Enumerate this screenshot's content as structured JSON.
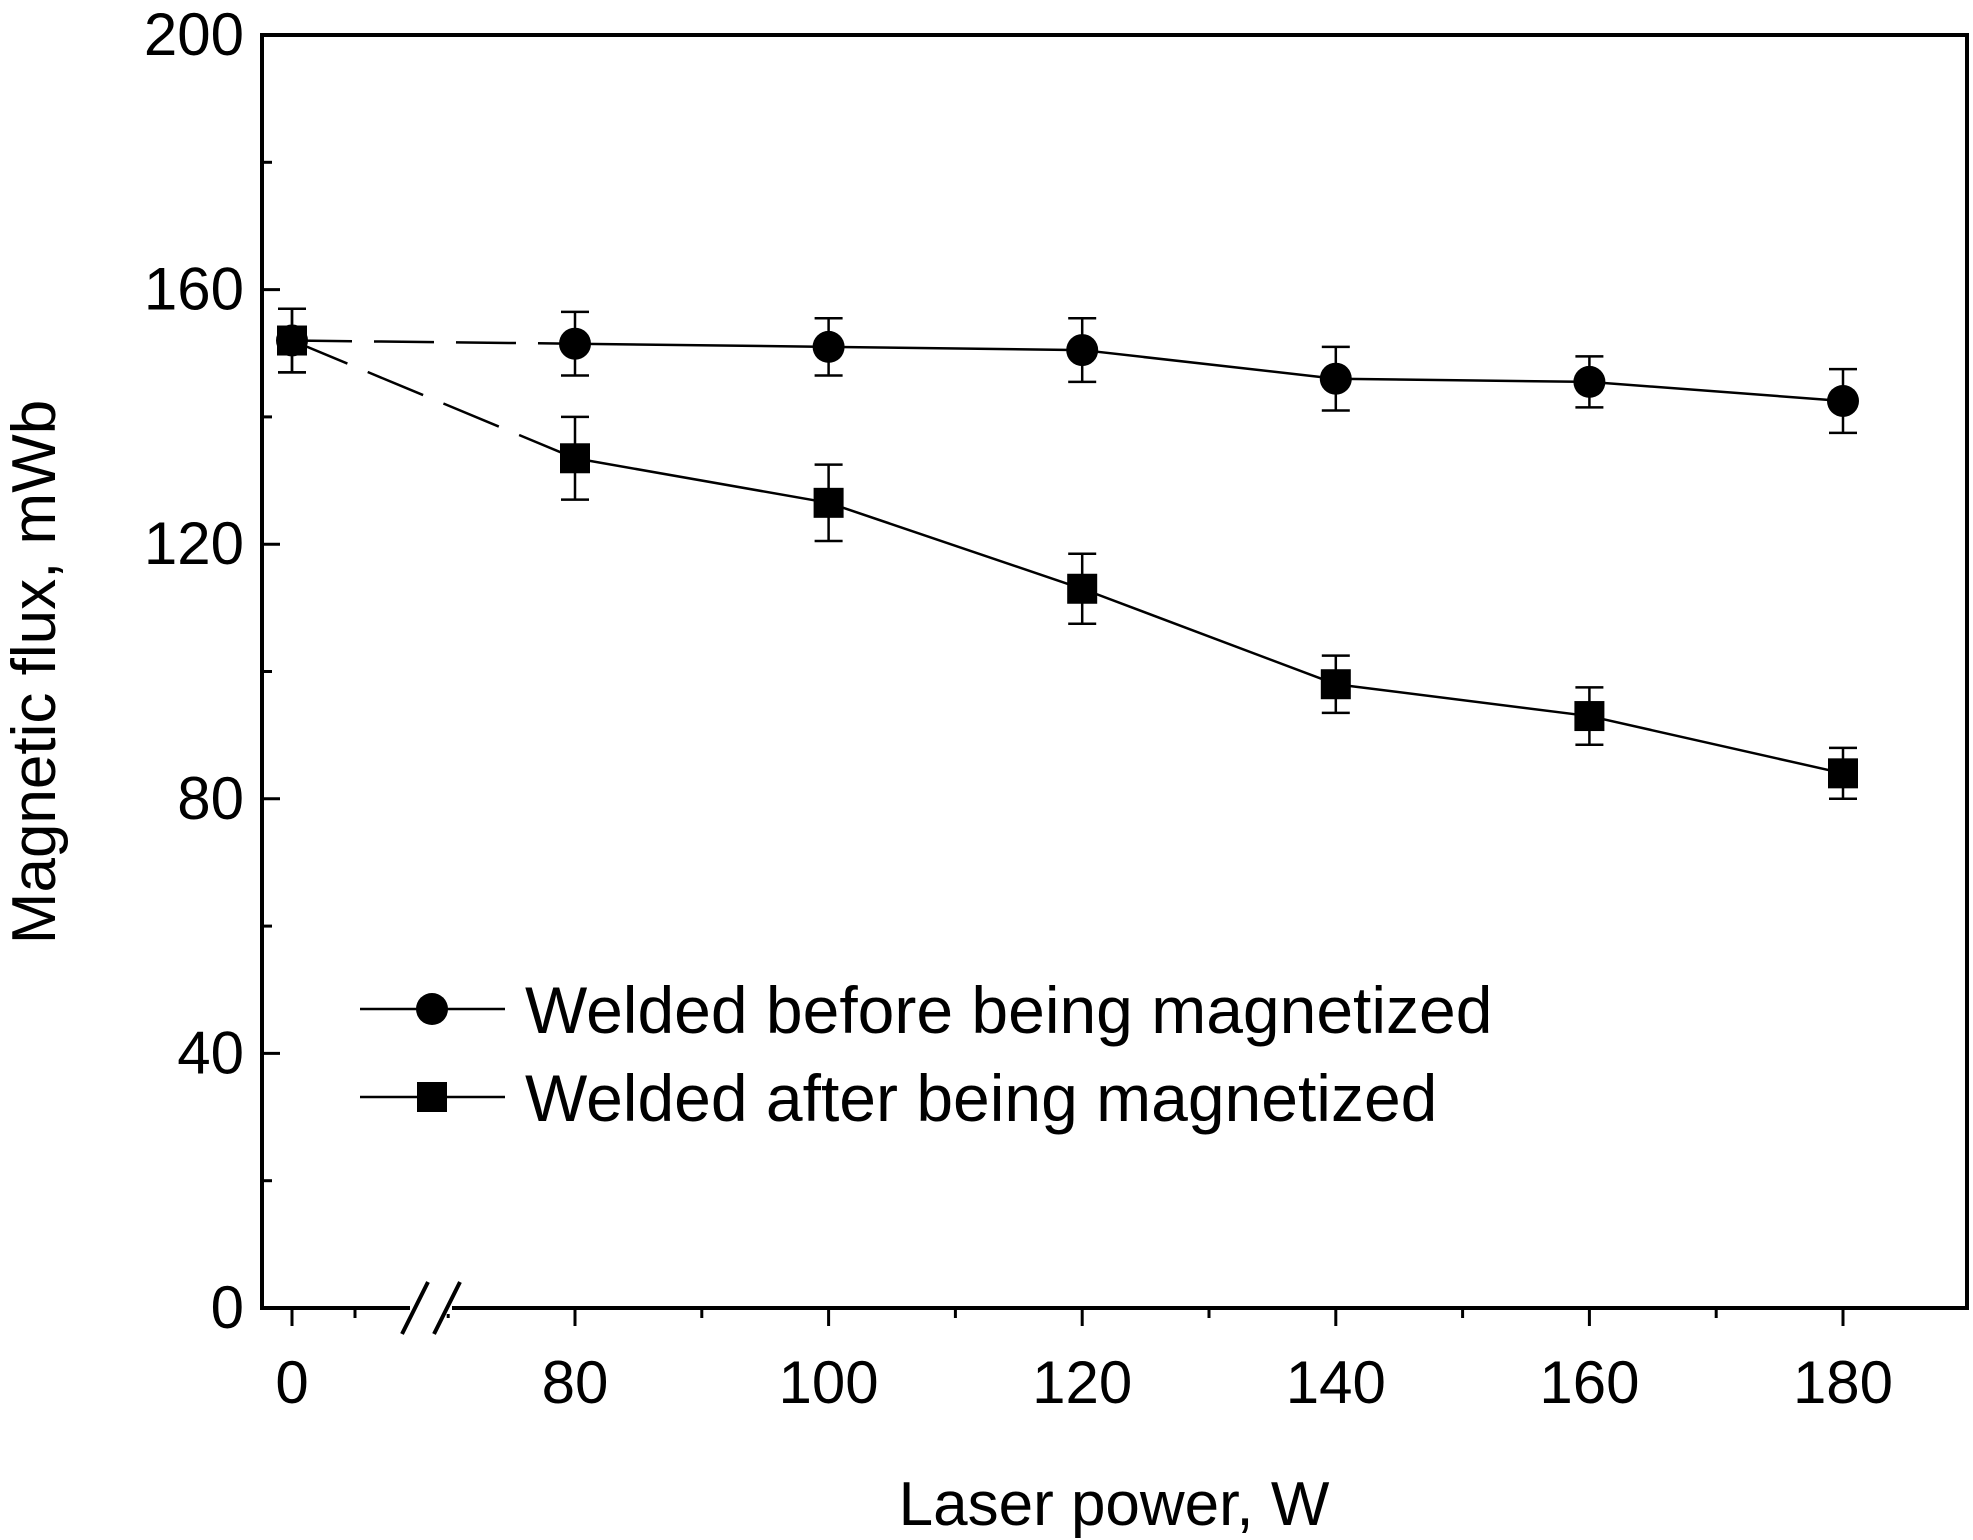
{
  "chart_data": {
    "type": "line",
    "xlabel": "Laser power, W",
    "ylabel": "Magnetic flux, mWb",
    "x": [
      0,
      80,
      100,
      120,
      140,
      160,
      180
    ],
    "x_tick_labels": [
      "0",
      "80",
      "100",
      "120",
      "140",
      "160",
      "180"
    ],
    "y_tick_labels": [
      "0",
      "40",
      "80",
      "120",
      "160",
      "200"
    ],
    "ylim": [
      0,
      200
    ],
    "axis_break": "between 0 and 80 on x axis",
    "grid": false,
    "legend_position": "lower-left",
    "series": [
      {
        "name": "Welded before being magnetized",
        "marker": "circle",
        "values": [
          152,
          151.5,
          151,
          150.5,
          146,
          145.5,
          142.5
        ],
        "error": [
          5,
          5,
          4.5,
          5,
          5,
          4,
          5
        ]
      },
      {
        "name": "Welded after being magnetized",
        "marker": "square",
        "values": [
          152,
          133.5,
          126.5,
          113,
          98,
          93,
          84
        ],
        "error": [
          5,
          6.5,
          6,
          5.5,
          4.5,
          4.5,
          4
        ]
      }
    ]
  }
}
